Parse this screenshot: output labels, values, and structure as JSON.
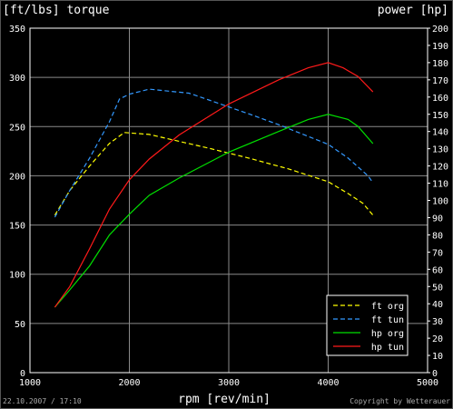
{
  "chart_data": {
    "type": "line",
    "title_left": "[ft/lbs] torque",
    "title_right": "power [hp]",
    "xlabel": "rpm [rev/min]",
    "footer_left": "22.10.2007 / 17:10",
    "footer_right": "Copyright by Wetterauer",
    "xlim": [
      1000,
      5000
    ],
    "ylim_left": [
      0,
      350
    ],
    "ylim_right": [
      0,
      200
    ],
    "x_ticks": [
      1000,
      2000,
      3000,
      4000,
      5000
    ],
    "y_left_ticks": [
      0,
      50,
      100,
      150,
      200,
      250,
      300,
      350
    ],
    "y_right_ticks": [
      0,
      10,
      20,
      30,
      40,
      50,
      60,
      70,
      80,
      90,
      100,
      110,
      120,
      130,
      140,
      150,
      160,
      170,
      180,
      190,
      200
    ],
    "grid": true,
    "legend_position": "bottom-right",
    "series": [
      {
        "name": "ft org",
        "axis": "left",
        "color": "#ffff00",
        "dash": true,
        "points": [
          [
            1250,
            160
          ],
          [
            1400,
            185
          ],
          [
            1600,
            210
          ],
          [
            1800,
            233
          ],
          [
            1950,
            244
          ],
          [
            2200,
            242
          ],
          [
            2500,
            235
          ],
          [
            2800,
            228
          ],
          [
            3200,
            218
          ],
          [
            3600,
            207
          ],
          [
            4000,
            194
          ],
          [
            4200,
            182
          ],
          [
            4350,
            172
          ],
          [
            4450,
            160
          ]
        ]
      },
      {
        "name": "ft tun",
        "axis": "left",
        "color": "#3399ff",
        "dash": true,
        "points": [
          [
            1250,
            158
          ],
          [
            1400,
            185
          ],
          [
            1600,
            218
          ],
          [
            1800,
            255
          ],
          [
            1900,
            278
          ],
          [
            2000,
            283
          ],
          [
            2200,
            288
          ],
          [
            2400,
            286
          ],
          [
            2600,
            284
          ],
          [
            2800,
            277
          ],
          [
            3000,
            270
          ],
          [
            3200,
            263
          ],
          [
            3500,
            252
          ],
          [
            3800,
            240
          ],
          [
            4000,
            232
          ],
          [
            4200,
            218
          ],
          [
            4400,
            200
          ],
          [
            4450,
            193
          ]
        ]
      },
      {
        "name": "hp org",
        "axis": "right",
        "color": "#00e000",
        "dash": false,
        "points": [
          [
            1250,
            38
          ],
          [
            1400,
            48
          ],
          [
            1600,
            62
          ],
          [
            1800,
            80
          ],
          [
            2000,
            92
          ],
          [
            2200,
            103
          ],
          [
            2500,
            113
          ],
          [
            3000,
            128
          ],
          [
            3500,
            140
          ],
          [
            3800,
            147
          ],
          [
            4000,
            150
          ],
          [
            4200,
            147
          ],
          [
            4300,
            143
          ],
          [
            4450,
            133
          ]
        ]
      },
      {
        "name": "hp tun",
        "axis": "right",
        "color": "#ff1a1a",
        "dash": false,
        "points": [
          [
            1250,
            38
          ],
          [
            1400,
            50
          ],
          [
            1600,
            72
          ],
          [
            1800,
            95
          ],
          [
            2000,
            112
          ],
          [
            2200,
            124
          ],
          [
            2500,
            138
          ],
          [
            3000,
            156
          ],
          [
            3500,
            170
          ],
          [
            3800,
            177
          ],
          [
            4000,
            180
          ],
          [
            4150,
            177
          ],
          [
            4300,
            172
          ],
          [
            4450,
            163
          ]
        ]
      }
    ]
  }
}
